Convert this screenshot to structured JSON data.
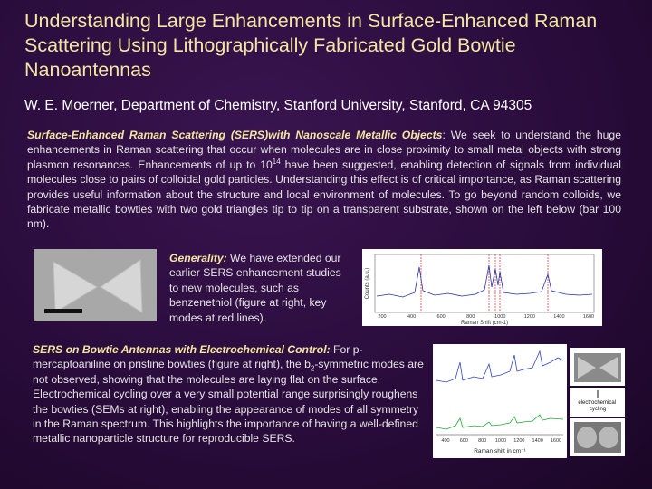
{
  "title": "Understanding Large Enhancements in Surface-Enhanced Raman Scattering Using Lithographically Fabricated Gold Bowtie Nanoantennas",
  "author": "W. E. Moerner, Department of Chemistry, Stanford University, Stanford, CA 94305",
  "intro": {
    "lead": "Surface-Enhanced Raman Scattering (SERS)with Nanoscale Metallic Objects",
    "text_1": ": We seek to understand the huge enhancements in Raman scattering that occur when molecules are in close proximity to small metal objects with strong plasmon resonances. Enhancements of up to 10",
    "sup": "14",
    "text_2": " have been suggested, enabling detection of signals from individual molecules close to pairs of colloidal gold particles. Understanding this effect is of critical importance, as Raman scattering provides useful information about the structure and local environment of molecules. To go beyond random colloids, we fabricate metallic bowties with two gold triangles tip to tip on a transparent substrate, shown on the left below (bar 100 nm)."
  },
  "generality": {
    "lead": "Generality:",
    "text": " We have extended our earlier SERS enhancement studies to new molecules, such as benzenethiol (figure at right, key modes at red lines)."
  },
  "section2": {
    "lead": "SERS on Bowtie Antennas with Electrochemical Control:",
    "text_1": " For p-mercaptoaniline on pristine bowties (figure at right), the b",
    "sub": "2",
    "text_2": "-symmetric modes are not observed, showing that the molecules are laying flat on the surface. Electrochemical cycling over a very small potential range surprisingly roughens the bowties (SEMs at right), enabling the appearance of modes of all symmetry in the Raman spectrum. This highlights the importance of having a well-defined metallic nanoparticle structure for reproducible SERS."
  },
  "figure1": {
    "ylabel": "Counts (a.u.)",
    "xlabel": "Raman Shift (cm-1)",
    "xticks": [
      "200",
      "400",
      "600",
      "800",
      "1000",
      "1200",
      "1400",
      "1600"
    ]
  },
  "figure2": {
    "xlabel": "Raman shift in cm⁻¹",
    "xticks": [
      "400",
      "600",
      "800",
      "1000",
      "1200",
      "1400",
      "1600"
    ],
    "legend": "electrochemical cycling"
  }
}
